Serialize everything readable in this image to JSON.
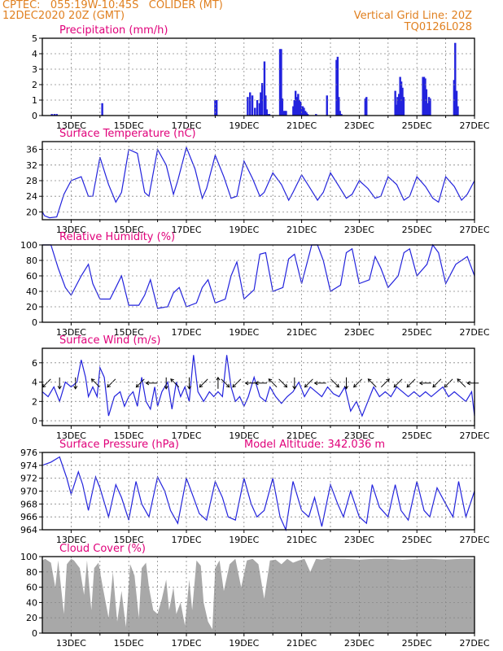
{
  "header": {
    "line1": "CPTEC:   055:19W-10:45S   COLIDER (MT)",
    "line2": "12DEC2020 20Z (GMT)",
    "grid_note": "Vertical Grid Line: 20Z",
    "code": "TQ0126L028"
  },
  "colors": {
    "header": "#e08020",
    "title": "#e0007a",
    "series": "#2222dd",
    "cloud": "#a8a8a8"
  },
  "chart_data": [
    {
      "type": "bar",
      "title": "Precipitation (mm/h)",
      "ylim": [
        0,
        5
      ],
      "yticks": [
        0,
        1,
        2,
        3,
        4,
        5
      ],
      "xlim": [
        0,
        15
      ],
      "grid_x": [
        1,
        2,
        3,
        4,
        5,
        6,
        7,
        8,
        9,
        10,
        11,
        12,
        13,
        14
      ],
      "xticks": [
        {
          "x": 1,
          "label": "13DEC"
        },
        {
          "x": 3,
          "label": "15DEC"
        },
        {
          "x": 5,
          "label": "17DEC"
        },
        {
          "x": 7,
          "label": "19DEC"
        },
        {
          "x": 9,
          "label": "21DEC"
        },
        {
          "x": 11,
          "label": "23DEC"
        },
        {
          "x": 13,
          "label": "25DEC"
        },
        {
          "x": 15,
          "label": "27DEC"
        }
      ],
      "x": [
        0.33,
        0.42,
        0.5,
        2.08,
        6.0,
        6.05,
        7.13,
        7.21,
        7.29,
        7.38,
        7.46,
        7.54,
        7.58,
        7.63,
        7.71,
        7.75,
        7.79,
        7.83,
        7.88,
        8.25,
        8.29,
        8.33,
        8.38,
        8.42,
        8.46,
        8.71,
        8.75,
        8.79,
        8.83,
        8.88,
        8.92,
        8.96,
        9.0,
        9.04,
        9.08,
        9.13,
        9.17,
        9.21,
        9.5,
        9.88,
        10.21,
        10.25,
        10.29,
        10.33,
        10.38,
        11.21,
        11.25,
        12.25,
        12.29,
        12.33,
        12.38,
        12.42,
        12.46,
        12.5,
        12.54,
        13.21,
        13.25,
        13.29,
        13.33,
        13.38,
        13.42,
        13.46,
        14.29,
        14.33,
        14.38,
        14.42
      ],
      "values": [
        0.1,
        0.1,
        0.1,
        0.8,
        1.0,
        1.0,
        1.2,
        1.5,
        1.3,
        0.5,
        1.0,
        0.8,
        1.5,
        2.1,
        3.5,
        1.3,
        0.4,
        0.1,
        0.1,
        4.3,
        4.3,
        1.1,
        0.3,
        0.3,
        0.3,
        0.6,
        1.0,
        1.6,
        1.2,
        1.4,
        1.0,
        0.9,
        0.6,
        0.6,
        0.5,
        0.3,
        0.2,
        0.1,
        0.1,
        1.3,
        3.6,
        3.8,
        1.2,
        0.3,
        0.1,
        1.1,
        1.2,
        1.6,
        0.7,
        1.2,
        1.4,
        2.5,
        2.2,
        1.8,
        1.2,
        2.5,
        2.5,
        2.4,
        1.7,
        0.8,
        1.2,
        1.1,
        2.3,
        4.7,
        1.6,
        0.6
      ]
    },
    {
      "type": "line",
      "title": "Surface Temperature (nC)",
      "ylim": [
        18,
        38
      ],
      "yticks": [
        20,
        24,
        28,
        32,
        36
      ],
      "xlim": [
        0,
        15
      ],
      "grid_x": [
        1,
        2,
        3,
        4,
        5,
        6,
        7,
        8,
        9,
        10,
        11,
        12,
        13,
        14
      ],
      "xticks": [
        {
          "x": 1,
          "label": "13DEC"
        },
        {
          "x": 3,
          "label": "15DEC"
        },
        {
          "x": 5,
          "label": "17DEC"
        },
        {
          "x": 7,
          "label": "19DEC"
        },
        {
          "x": 9,
          "label": "21DEC"
        },
        {
          "x": 11,
          "label": "23DEC"
        },
        {
          "x": 13,
          "label": "25DEC"
        },
        {
          "x": 15,
          "label": "27DEC"
        }
      ],
      "x": [
        0,
        0.08,
        0.25,
        0.5,
        0.75,
        1.0,
        1.35,
        1.6,
        1.75,
        2.0,
        2.3,
        2.55,
        2.75,
        3.0,
        3.3,
        3.55,
        3.7,
        4.0,
        4.3,
        4.55,
        4.7,
        5.0,
        5.3,
        5.55,
        5.7,
        6.0,
        6.3,
        6.55,
        6.75,
        7.0,
        7.3,
        7.55,
        7.7,
        8.0,
        8.3,
        8.55,
        8.7,
        9.0,
        9.3,
        9.55,
        9.75,
        10.0,
        10.3,
        10.55,
        10.75,
        11.0,
        11.3,
        11.55,
        11.75,
        12.0,
        12.3,
        12.55,
        12.75,
        13.0,
        13.3,
        13.55,
        13.75,
        14.0,
        14.3,
        14.55,
        14.75,
        15.0
      ],
      "values": [
        20,
        19,
        18.5,
        18.7,
        24.5,
        28,
        29,
        24,
        24,
        34,
        27,
        22.5,
        25,
        36,
        35,
        25,
        24,
        36,
        32,
        24.5,
        28,
        36.5,
        31,
        23.5,
        26,
        34.5,
        29,
        23.5,
        24,
        33,
        28.5,
        24,
        25,
        30,
        27,
        23,
        25,
        29.5,
        26,
        23,
        25,
        30,
        26.5,
        23.5,
        24.5,
        28,
        26,
        23.5,
        24,
        29,
        27,
        23,
        24,
        29,
        26.5,
        23.5,
        22.5,
        29,
        26.5,
        23,
        24.5,
        28
      ]
    },
    {
      "type": "line",
      "title": "Relative Humidity (%)",
      "ylim": [
        0,
        100
      ],
      "yticks": [
        0,
        20,
        40,
        60,
        80,
        100
      ],
      "xlim": [
        0,
        15
      ],
      "grid_x": [
        1,
        2,
        3,
        4,
        5,
        6,
        7,
        8,
        9,
        10,
        11,
        12,
        13,
        14
      ],
      "xticks": [
        {
          "x": 1,
          "label": "13DEC"
        },
        {
          "x": 3,
          "label": "15DEC"
        },
        {
          "x": 5,
          "label": "17DEC"
        },
        {
          "x": 7,
          "label": "19DEC"
        },
        {
          "x": 9,
          "label": "21DEC"
        },
        {
          "x": 11,
          "label": "23DEC"
        },
        {
          "x": 13,
          "label": "25DEC"
        },
        {
          "x": 15,
          "label": "27DEC"
        }
      ],
      "x": [
        0,
        0.3,
        0.55,
        0.8,
        1.0,
        1.35,
        1.6,
        1.75,
        2.0,
        2.35,
        2.55,
        2.75,
        3.0,
        3.35,
        3.55,
        3.75,
        4.0,
        4.35,
        4.55,
        4.75,
        5.0,
        5.35,
        5.55,
        5.75,
        6.0,
        6.35,
        6.55,
        6.75,
        7.0,
        7.35,
        7.55,
        7.75,
        8.0,
        8.35,
        8.55,
        8.75,
        9.0,
        9.35,
        9.55,
        9.75,
        10.0,
        10.35,
        10.55,
        10.75,
        11.0,
        11.35,
        11.55,
        11.75,
        12.0,
        12.35,
        12.55,
        12.75,
        13.0,
        13.35,
        13.55,
        13.75,
        14.0,
        14.35,
        14.55,
        14.75,
        15.0
      ],
      "values": [
        100,
        100,
        70,
        45,
        35,
        60,
        75,
        50,
        30,
        30,
        45,
        60,
        22,
        22,
        35,
        55,
        18,
        20,
        38,
        45,
        20,
        25,
        45,
        55,
        25,
        30,
        60,
        78,
        30,
        42,
        88,
        90,
        40,
        45,
        82,
        88,
        50,
        100,
        100,
        80,
        40,
        48,
        90,
        95,
        50,
        55,
        85,
        70,
        45,
        60,
        90,
        95,
        60,
        75,
        100,
        90,
        50,
        75,
        80,
        85,
        60
      ]
    },
    {
      "type": "line",
      "title": "Surface Wind (m/s)",
      "ylim": [
        -0.5,
        7.5
      ],
      "yticks": [
        0,
        2,
        4,
        6
      ],
      "xlim": [
        0,
        15
      ],
      "grid_x": [
        1,
        2,
        3,
        4,
        5,
        6,
        7,
        8,
        9,
        10,
        11,
        12,
        13,
        14
      ],
      "xticks": [
        {
          "x": 1,
          "label": "13DEC"
        },
        {
          "x": 3,
          "label": "15DEC"
        },
        {
          "x": 5,
          "label": "17DEC"
        },
        {
          "x": 7,
          "label": "19DEC"
        },
        {
          "x": 9,
          "label": "21DEC"
        },
        {
          "x": 11,
          "label": "23DEC"
        },
        {
          "x": 13,
          "label": "25DEC"
        },
        {
          "x": 15,
          "label": "27DEC"
        }
      ],
      "x": [
        0,
        0.2,
        0.4,
        0.6,
        0.8,
        1.0,
        1.2,
        1.35,
        1.5,
        1.6,
        1.75,
        1.9,
        2.0,
        2.15,
        2.3,
        2.5,
        2.7,
        2.85,
        3.0,
        3.15,
        3.3,
        3.45,
        3.6,
        3.75,
        3.9,
        4.0,
        4.15,
        4.35,
        4.5,
        4.65,
        4.8,
        4.95,
        5.1,
        5.25,
        5.4,
        5.6,
        5.8,
        5.95,
        6.1,
        6.25,
        6.4,
        6.55,
        6.7,
        6.85,
        7.0,
        7.15,
        7.35,
        7.55,
        7.75,
        7.9,
        8.1,
        8.3,
        8.5,
        8.7,
        8.9,
        9.1,
        9.3,
        9.5,
        9.7,
        9.9,
        10.1,
        10.3,
        10.5,
        10.7,
        10.9,
        11.1,
        11.3,
        11.5,
        11.7,
        11.9,
        12.1,
        12.3,
        12.5,
        12.7,
        12.9,
        13.1,
        13.3,
        13.5,
        13.7,
        13.9,
        14.1,
        14.3,
        14.5,
        14.7,
        14.9,
        15.0
      ],
      "values": [
        3,
        2.5,
        3.5,
        2.0,
        4.0,
        3.5,
        4.0,
        6.3,
        4.5,
        2.5,
        3.5,
        2.5,
        5.5,
        4.5,
        0.5,
        2.5,
        3.0,
        1.5,
        2.5,
        3.0,
        1.5,
        4.5,
        2.0,
        1.2,
        3.5,
        1.5,
        3.0,
        4.0,
        1.2,
        4.0,
        2.5,
        3.5,
        2.0,
        6.8,
        3.0,
        2.0,
        3.0,
        2.5,
        3.0,
        2.5,
        6.8,
        3.5,
        2.0,
        2.5,
        1.5,
        2.5,
        4.5,
        2.5,
        2.0,
        3.5,
        2.5,
        1.8,
        2.5,
        3.0,
        4.0,
        2.5,
        3.5,
        3.0,
        2.5,
        3.5,
        2.8,
        2.5,
        3.5,
        1.0,
        2.0,
        0.5,
        2.0,
        3.5,
        2.5,
        3.0,
        2.5,
        3.5,
        3.0,
        2.5,
        3.0,
        2.5,
        3.0,
        2.5,
        3.0,
        3.5,
        2.5,
        3.0,
        2.5,
        2.0,
        3.0,
        0.5
      ],
      "arrows_x": [
        0.15,
        0.6,
        1.15,
        1.85,
        2.4,
        3.4,
        3.8,
        4.3,
        4.6,
        5.1,
        5.6,
        6.1,
        6.35,
        6.75,
        7.25,
        7.6,
        8.0,
        8.35,
        8.75,
        9.25,
        9.65,
        10.15,
        10.55,
        10.95,
        11.45,
        11.9,
        12.35,
        12.8,
        13.3,
        13.7,
        14.1,
        14.55,
        14.95
      ],
      "arrows_dir": [
        225,
        270,
        270,
        135,
        225,
        225,
        180,
        270,
        135,
        270,
        225,
        90,
        315,
        225,
        180,
        180,
        135,
        315,
        270,
        225,
        180,
        315,
        270,
        225,
        135,
        45,
        225,
        225,
        180,
        225,
        225,
        135,
        180
      ]
    },
    {
      "type": "line",
      "title": "Surface Pressure (hPa)",
      "annotation": "Model Altitude: 342.036 m",
      "ylim": [
        964,
        976
      ],
      "yticks": [
        964,
        966,
        968,
        970,
        972,
        974,
        976
      ],
      "xlim": [
        0,
        15
      ],
      "grid_x": [
        1,
        2,
        3,
        4,
        5,
        6,
        7,
        8,
        9,
        10,
        11,
        12,
        13,
        14
      ],
      "xticks": [
        {
          "x": 1,
          "label": "13DEC"
        },
        {
          "x": 3,
          "label": "15DEC"
        },
        {
          "x": 5,
          "label": "17DEC"
        },
        {
          "x": 7,
          "label": "19DEC"
        },
        {
          "x": 9,
          "label": "21DEC"
        },
        {
          "x": 11,
          "label": "23DEC"
        },
        {
          "x": 13,
          "label": "25DEC"
        },
        {
          "x": 15,
          "label": "27DEC"
        }
      ],
      "x": [
        0,
        0.3,
        0.6,
        0.85,
        1.0,
        1.25,
        1.4,
        1.6,
        1.85,
        2.0,
        2.3,
        2.55,
        2.75,
        3.0,
        3.25,
        3.45,
        3.7,
        4.0,
        4.25,
        4.45,
        4.7,
        5.0,
        5.25,
        5.45,
        5.7,
        6.0,
        6.25,
        6.45,
        6.7,
        7.0,
        7.25,
        7.45,
        7.7,
        8.0,
        8.25,
        8.45,
        8.7,
        9.0,
        9.25,
        9.45,
        9.7,
        10.0,
        10.25,
        10.45,
        10.7,
        11.0,
        11.25,
        11.45,
        11.7,
        12.0,
        12.25,
        12.45,
        12.7,
        13.0,
        13.25,
        13.45,
        13.7,
        14.0,
        14.25,
        14.45,
        14.7,
        15.0
      ],
      "values": [
        974,
        974.5,
        975.3,
        972,
        969.5,
        973,
        971,
        967,
        972.2,
        970.5,
        966,
        971,
        969,
        965.5,
        971.5,
        968,
        966,
        972.2,
        970,
        967,
        965,
        972,
        969,
        966.5,
        965.5,
        971.5,
        969,
        966,
        965.5,
        972,
        968,
        966,
        967,
        972,
        966,
        964,
        971.5,
        967,
        966,
        969,
        964.5,
        971,
        968,
        966,
        970,
        966,
        965,
        971,
        967.5,
        966,
        971,
        967,
        965.5,
        971.5,
        967,
        966,
        970.5,
        968,
        966,
        971.5,
        966,
        970
      ]
    },
    {
      "type": "area",
      "title": "Cloud Cover (%)",
      "ylim": [
        0,
        100
      ],
      "yticks": [
        0,
        20,
        40,
        60,
        80,
        100
      ],
      "xlim": [
        0,
        15
      ],
      "grid_x": [
        1,
        2,
        3,
        4,
        5,
        6,
        7,
        8,
        9,
        10,
        11,
        12,
        13,
        14
      ],
      "xticks": [
        {
          "x": 1,
          "label": "13DEC"
        },
        {
          "x": 3,
          "label": "15DEC"
        },
        {
          "x": 5,
          "label": "17DEC"
        },
        {
          "x": 7,
          "label": "19DEC"
        },
        {
          "x": 9,
          "label": "21DEC"
        },
        {
          "x": 11,
          "label": "23DEC"
        },
        {
          "x": 13,
          "label": "25DEC"
        },
        {
          "x": 15,
          "label": "27DEC"
        }
      ],
      "x": [
        0,
        0.1,
        0.3,
        0.45,
        0.55,
        0.75,
        0.85,
        1.0,
        1.1,
        1.3,
        1.45,
        1.55,
        1.7,
        1.8,
        1.95,
        2.1,
        2.3,
        2.45,
        2.6,
        2.75,
        2.9,
        3.05,
        3.2,
        3.35,
        3.45,
        3.6,
        3.7,
        3.85,
        4.0,
        4.15,
        4.3,
        4.4,
        4.55,
        4.65,
        4.8,
        4.95,
        5.1,
        5.2,
        5.35,
        5.5,
        5.6,
        5.75,
        5.9,
        6.0,
        6.15,
        6.3,
        6.5,
        6.7,
        6.9,
        7.1,
        7.3,
        7.5,
        7.7,
        7.9,
        8.1,
        8.3,
        8.5,
        8.7,
        8.9,
        9.1,
        9.3,
        9.5,
        9.7,
        9.9,
        10.1,
        10.5,
        11.0,
        11.5,
        12.0,
        12.5,
        13.0,
        13.5,
        14.0,
        14.5,
        15.0
      ],
      "values": [
        95,
        97,
        92,
        60,
        95,
        25,
        90,
        97,
        95,
        85,
        50,
        95,
        30,
        85,
        92,
        60,
        20,
        80,
        15,
        55,
        8,
        90,
        75,
        20,
        85,
        92,
        60,
        30,
        25,
        45,
        70,
        30,
        60,
        25,
        40,
        10,
        70,
        30,
        95,
        88,
        40,
        15,
        5,
        85,
        95,
        55,
        90,
        97,
        60,
        95,
        97,
        90,
        45,
        95,
        96,
        90,
        97,
        92,
        95,
        97,
        80,
        97,
        96,
        98,
        97,
        97,
        96,
        97,
        97,
        96,
        97,
        97,
        96,
        97,
        97
      ]
    }
  ]
}
